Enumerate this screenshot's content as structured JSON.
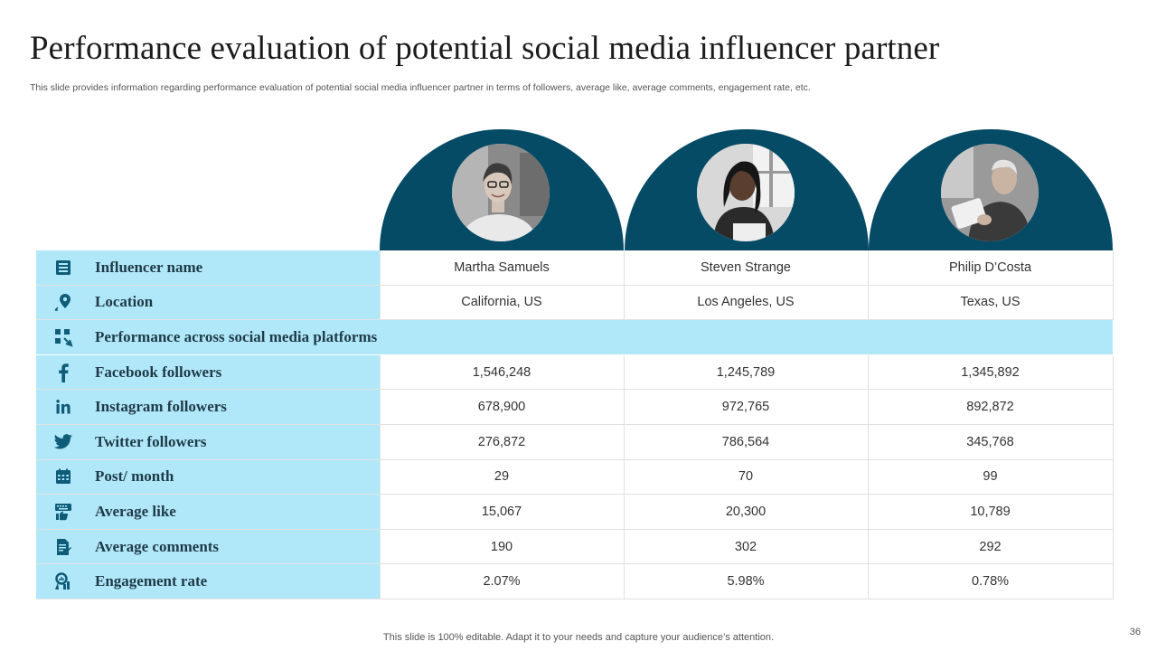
{
  "slide": {
    "title": "Performance evaluation of potential social media influencer partner",
    "subtitle": "This slide provides information regarding performance evaluation of potential social media influencer partner in terms of followers, average like, average comments, engagement rate, etc.",
    "footer": "This slide is 100% editable. Adapt it to your needs and capture your audience’s attention.",
    "page_number": "36"
  },
  "colors": {
    "header_teal": "#054b66",
    "label_bg": "#b1e8f9",
    "icon_color": "#0f5c78"
  },
  "table": {
    "rows": [
      {
        "label": "Influencer name",
        "icon": "id-card-icon",
        "values": [
          "Martha Samuels",
          "Steven Strange",
          "Philip D’Costa"
        ]
      },
      {
        "label": "Location",
        "icon": "location-pin-icon",
        "values": [
          "California, US",
          "Los Angeles, US",
          "Texas, US"
        ]
      },
      {
        "label": "Performance across social media platforms",
        "icon": "network-icon",
        "section": true
      },
      {
        "label": "Facebook followers",
        "icon": "facebook-icon",
        "values": [
          "1,546,248",
          "1,245,789",
          "1,345,892"
        ]
      },
      {
        "label": "Instagram followers",
        "icon": "linkedin-icon",
        "values": [
          "678,900",
          "972,765",
          "892,872"
        ]
      },
      {
        "label": "Twitter followers",
        "icon": "twitter-icon",
        "values": [
          "276,872",
          "786,564",
          "345,768"
        ]
      },
      {
        "label": "Post/ month",
        "icon": "calendar-icon",
        "values": [
          "29",
          "70",
          "99"
        ]
      },
      {
        "label": "Average like",
        "icon": "thumbs-up-icon",
        "values": [
          "15,067",
          "20,300",
          "10,789"
        ]
      },
      {
        "label": "Average comments",
        "icon": "document-icon",
        "values": [
          "190",
          "302",
          "292"
        ]
      },
      {
        "label": "Engagement rate",
        "icon": "analytics-icon",
        "values": [
          "2.07%",
          "5.98%",
          "0.78%"
        ]
      }
    ]
  }
}
